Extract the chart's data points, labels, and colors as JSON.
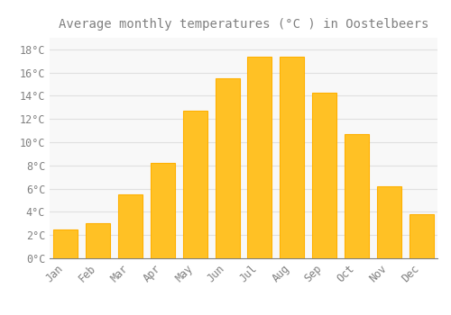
{
  "title": "Average monthly temperatures (°C ) in Oostelbeers",
  "months": [
    "Jan",
    "Feb",
    "Mar",
    "Apr",
    "May",
    "Jun",
    "Jul",
    "Aug",
    "Sep",
    "Oct",
    "Nov",
    "Dec"
  ],
  "values": [
    2.5,
    3.0,
    5.5,
    8.2,
    12.7,
    15.5,
    17.4,
    17.4,
    14.3,
    10.7,
    6.2,
    3.8
  ],
  "bar_color": "#FFC125",
  "bar_edge_color": "#FFB000",
  "background_color": "#FFFFFF",
  "plot_bg_color": "#F8F8F8",
  "grid_color": "#E0E0E0",
  "text_color": "#808080",
  "ylim": [
    0,
    19
  ],
  "yticks": [
    0,
    2,
    4,
    6,
    8,
    10,
    12,
    14,
    16,
    18
  ],
  "title_fontsize": 10,
  "tick_fontsize": 8.5,
  "bar_width": 0.75
}
